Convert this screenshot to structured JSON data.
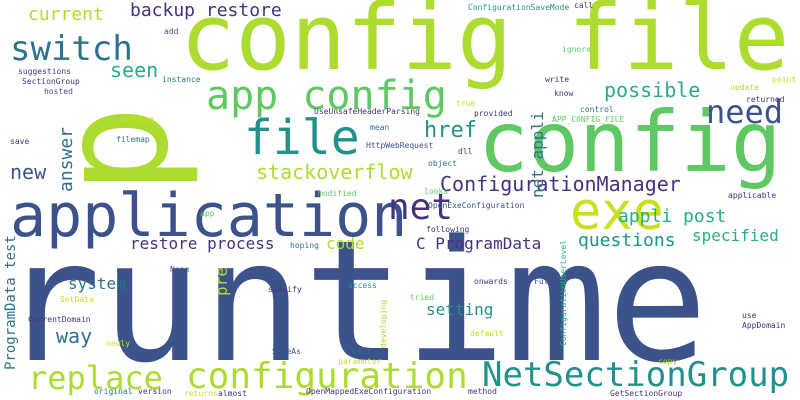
{
  "palette": {
    "navy": "#3b528b",
    "purple": "#46327e",
    "dark_purple": "#472c7a",
    "teal": "#21918c",
    "blue_teal": "#2c728e",
    "green_teal": "#28ae80",
    "green": "#5ec962",
    "lime": "#addc30",
    "yellow_green": "#c8e020",
    "deep": "#440154"
  },
  "words": [
    {
      "text": "runtime",
      "color": "#3b528b"
    },
    {
      "text": "config file",
      "color": "#addc30"
    },
    {
      "text": "config",
      "color": "#5ec962"
    },
    {
      "text": "application",
      "color": "#3b528b"
    },
    {
      "text": "p",
      "color": "#addc30"
    },
    {
      "text": "exe",
      "color": "#c8e020"
    },
    {
      "text": "net",
      "color": "#46327e"
    },
    {
      "text": "file",
      "color": "#21918c"
    },
    {
      "text": "app config",
      "color": "#5ec962"
    },
    {
      "text": "configuration",
      "color": "#addc30"
    },
    {
      "text": "NetSectionGroup",
      "color": "#21918c"
    },
    {
      "text": "replace",
      "color": "#addc30"
    },
    {
      "text": "switch",
      "color": "#2c728e"
    },
    {
      "text": "need",
      "color": "#3b528b"
    },
    {
      "text": "ConfigurationManager",
      "color": "#46327e"
    },
    {
      "text": "stackoverflow",
      "color": "#addc30"
    },
    {
      "text": "possible",
      "color": "#28ae80"
    },
    {
      "text": "href",
      "color": "#21918c"
    },
    {
      "text": "backup restore",
      "color": "#46327e"
    },
    {
      "text": "current",
      "color": "#addc30"
    },
    {
      "text": "seen",
      "color": "#28ae80"
    },
    {
      "text": "answer",
      "color": "#2c728e"
    },
    {
      "text": "new",
      "color": "#3b528b"
    },
    {
      "text": "appli post",
      "color": "#28ae80"
    },
    {
      "text": "questions",
      "color": "#21918c"
    },
    {
      "text": "specified",
      "color": "#28ae80"
    },
    {
      "text": "restore process",
      "color": "#46327e"
    },
    {
      "text": "code",
      "color": "#addc30"
    },
    {
      "text": "C ProgramData",
      "color": "#46327e"
    },
    {
      "text": "system",
      "color": "#2c728e"
    },
    {
      "text": "way",
      "color": "#2c728e"
    },
    {
      "text": "setting",
      "color": "#21918c"
    },
    {
      "text": "net appli",
      "color": "#2c728e"
    },
    {
      "text": "ProgramData test",
      "color": "#2c728e"
    },
    {
      "text": "pre",
      "color": "#addc30"
    },
    {
      "text": "ConfigurationSaveMode",
      "color": "#21918c"
    },
    {
      "text": "call",
      "color": "#46327e"
    },
    {
      "text": "ignore",
      "color": "#5ec962"
    },
    {
      "text": "write",
      "color": "#46327e"
    },
    {
      "text": "know",
      "color": "#46327e"
    },
    {
      "text": "point",
      "color": "#c8e020"
    },
    {
      "text": "update",
      "color": "#addc30"
    },
    {
      "text": "returned",
      "color": "#46327e"
    },
    {
      "text": "control",
      "color": "#2c728e"
    },
    {
      "text": "APP_CONFIG_FILE",
      "color": "#5ec962"
    },
    {
      "text": "true",
      "color": "#c8e020"
    },
    {
      "text": "provided",
      "color": "#46327e"
    },
    {
      "text": "add",
      "color": "#3b528b"
    },
    {
      "text": "suggestions",
      "color": "#46327e"
    },
    {
      "text": "SectionGroup",
      "color": "#46327e"
    },
    {
      "text": "hosted",
      "color": "#3b528b"
    },
    {
      "text": "instance",
      "color": "#2c728e"
    },
    {
      "text": "UseUnsafeHeaderParsing",
      "color": "#46327e"
    },
    {
      "text": "mean",
      "color": "#2c728e"
    },
    {
      "text": "working",
      "color": "#c8e020"
    },
    {
      "text": "filemap",
      "color": "#2c728e"
    },
    {
      "text": "HttpWebRequest",
      "color": "#3b528b"
    },
    {
      "text": "save",
      "color": "#46327e"
    },
    {
      "text": "dll",
      "color": "#46327e"
    },
    {
      "text": "object",
      "color": "#2c728e"
    },
    {
      "text": "modified",
      "color": "#5ec962"
    },
    {
      "text": "looks",
      "color": "#5ec962"
    },
    {
      "text": "applicable",
      "color": "#46327e"
    },
    {
      "text": "OpenExeConfiguration",
      "color": "#3b528b"
    },
    {
      "text": "app",
      "color": "#5ec962"
    },
    {
      "text": "following",
      "color": "#46327e"
    },
    {
      "text": "ConfigurationUserLevel",
      "color": "#28ae80"
    },
    {
      "text": "hoping",
      "color": "#2c728e"
    },
    {
      "text": "None",
      "color": "#3b528b"
    },
    {
      "text": "specify",
      "color": "#46327e"
    },
    {
      "text": "access",
      "color": "#21918c"
    },
    {
      "text": "onwards",
      "color": "#46327e"
    },
    {
      "text": "Full",
      "color": "#3b528b"
    },
    {
      "text": "SetData",
      "color": "#c8e020"
    },
    {
      "text": "tried",
      "color": "#5ec962"
    },
    {
      "text": "CurrentDomain",
      "color": "#46327e"
    },
    {
      "text": "developing",
      "color": "#addc30"
    },
    {
      "text": "default",
      "color": "#c8e020"
    },
    {
      "text": "use",
      "color": "#46327e"
    },
    {
      "text": "AppDomain",
      "color": "#46327e"
    },
    {
      "text": "newly",
      "color": "#c8e020"
    },
    {
      "text": "SaveAs",
      "color": "#3b528b"
    },
    {
      "text": "will",
      "color": "#2c728e"
    },
    {
      "text": "parameter",
      "color": "#c8e020"
    },
    {
      "text": "copy",
      "color": "#addc30"
    },
    {
      "text": "original",
      "color": "#2c728e"
    },
    {
      "text": "version",
      "color": "#46327e"
    },
    {
      "text": "returns",
      "color": "#c8e020"
    },
    {
      "text": "almost",
      "color": "#46327e"
    },
    {
      "text": "OpenMappedExeConfiguration",
      "color": "#46327e"
    },
    {
      "text": "method",
      "color": "#46327e"
    },
    {
      "text": "GetSectionGroup",
      "color": "#46327e"
    }
  ]
}
